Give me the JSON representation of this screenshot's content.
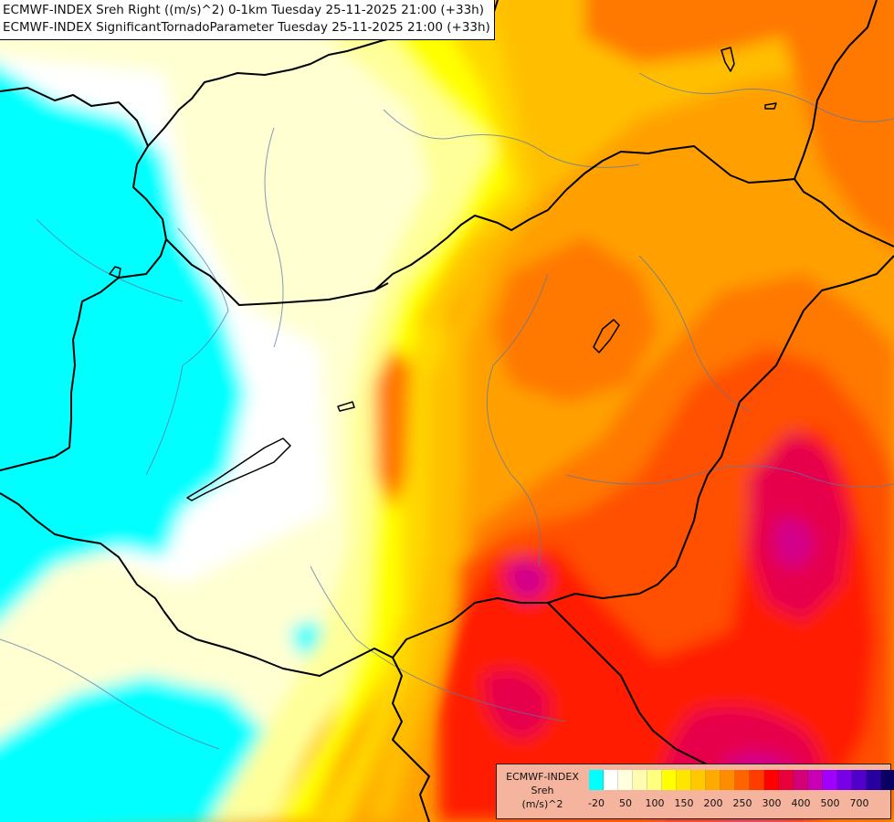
{
  "title_lines": [
    "ECMWF-INDEX Sreh Right ((m/s)^2) 0-1km Tuesday 25-11-2025 21:00 (+33h)",
    "ECMWF-INDEX SignificantTornadoParameter Tuesday 25-11-2025 21:00 (+33h)"
  ],
  "legend": {
    "title_lines": [
      "ECMWF-INDEX",
      "Sreh",
      "(m/s)^2"
    ],
    "colors": [
      "#00ffff",
      "#ffffff",
      "#ffffe0",
      "#fffbb0",
      "#ffff80",
      "#ffff00",
      "#ffe600",
      "#ffc800",
      "#ffaa00",
      "#ff8c00",
      "#ff6400",
      "#ff3c00",
      "#ff0000",
      "#e8003c",
      "#d40078",
      "#c800b4",
      "#a000ff",
      "#7800e6",
      "#5000c8",
      "#2800a0",
      "#0a0064"
    ],
    "ticks": [
      {
        "label": "-20",
        "index": 0.5
      },
      {
        "label": "50",
        "index": 2.5
      },
      {
        "label": "100",
        "index": 4.5
      },
      {
        "label": "150",
        "index": 6.5
      },
      {
        "label": "200",
        "index": 8.5
      },
      {
        "label": "250",
        "index": 10.5
      },
      {
        "label": "300",
        "index": 12.5
      },
      {
        "label": "400",
        "index": 14.5
      },
      {
        "label": "500",
        "index": 16.5
      },
      {
        "label": "700",
        "index": 18.5
      }
    ]
  },
  "palette": {
    "cyan": "#00ffff",
    "white": "#ffffff",
    "pale_yellow": "#ffffd2",
    "light_yellow": "#ffff99",
    "yellow": "#ffff00",
    "gold": "#ffd700",
    "light_orange": "#ffbf00",
    "orange": "#ffa000",
    "dark_orange": "#ff7800",
    "orange_red": "#ff5000",
    "red": "#ff1e00",
    "crimson": "#e6004b",
    "magenta": "#d2008c"
  }
}
